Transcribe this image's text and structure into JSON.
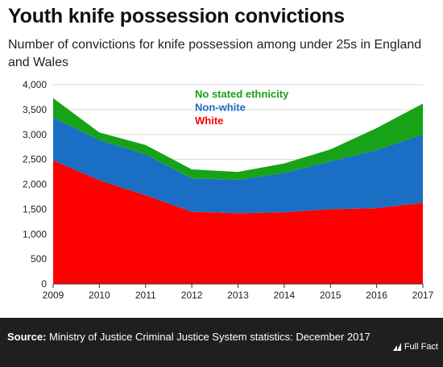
{
  "header": {
    "title": "Youth knife possession convictions",
    "subtitle": "Number of convictions for knife possession among under 25s in England and Wales"
  },
  "footer": {
    "source_label": "Source:",
    "source_text": "Ministry of Justice Criminal Justice System statistics: December 2017",
    "logo_text": "Full Fact"
  },
  "colors": {
    "white": "#ff0000",
    "non_white": "#1a6fc4",
    "no_stated": "#17a317"
  },
  "chart_data": {
    "type": "area",
    "stacked": true,
    "x": [
      2009,
      2010,
      2011,
      2012,
      2013,
      2014,
      2015,
      2016,
      2017
    ],
    "ylim": [
      0,
      4000
    ],
    "yticks": [
      0,
      500,
      1000,
      1500,
      2000,
      2500,
      3000,
      3500,
      4000
    ],
    "ytick_labels": [
      "0",
      "500",
      "1,000",
      "1,500",
      "2,000",
      "2,500",
      "3,000",
      "3,500",
      "4,000"
    ],
    "xtick_labels": [
      "2009",
      "2010",
      "2011",
      "2012",
      "2013",
      "2014",
      "2015",
      "2016",
      "2017"
    ],
    "grid": true,
    "legend": "inline-top",
    "series": [
      {
        "name": "White",
        "color": "#ff0000",
        "values": [
          2480,
          2080,
          1780,
          1450,
          1420,
          1440,
          1500,
          1520,
          1630
        ]
      },
      {
        "name": "Non-white",
        "color": "#1a6fc4",
        "values": [
          860,
          810,
          820,
          670,
          670,
          790,
          960,
          1170,
          1370
        ]
      },
      {
        "name": "No stated ethnicity",
        "color": "#17a317",
        "values": [
          390,
          150,
          190,
          180,
          160,
          190,
          240,
          440,
          620
        ]
      }
    ]
  }
}
